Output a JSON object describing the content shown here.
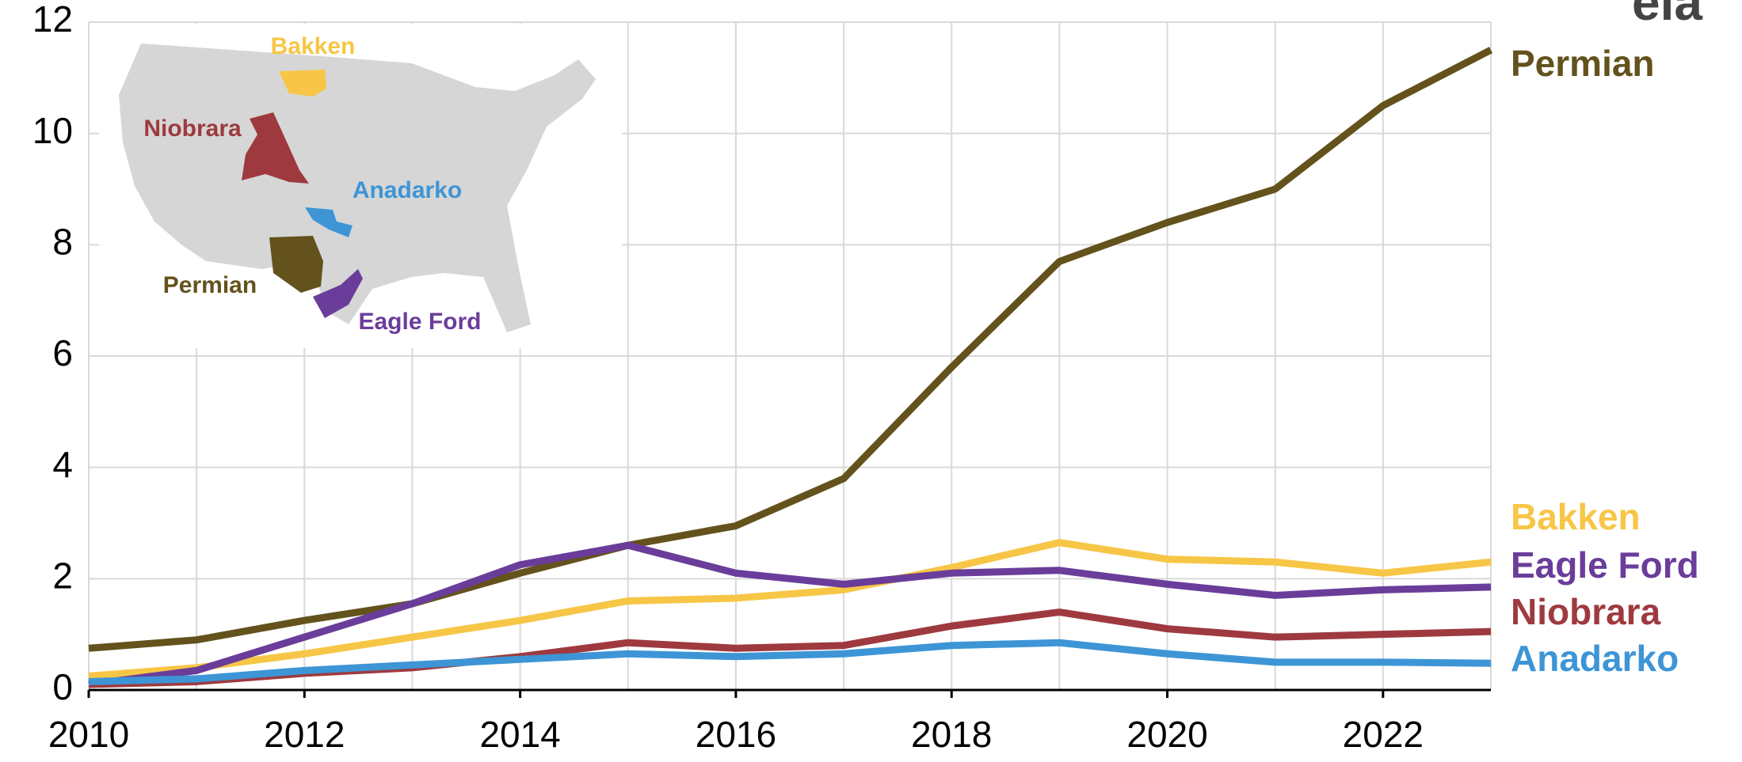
{
  "chart_data": {
    "type": "line",
    "x": [
      2010,
      2011,
      2012,
      2013,
      2014,
      2015,
      2016,
      2017,
      2018,
      2019,
      2020,
      2021,
      2022,
      2023
    ],
    "series": [
      {
        "name": "Permian",
        "color": "#63521c",
        "values": [
          0.75,
          0.9,
          1.25,
          1.55,
          2.1,
          2.6,
          2.95,
          3.8,
          5.8,
          7.7,
          8.4,
          9.0,
          10.5,
          11.5
        ]
      },
      {
        "name": "Bakken",
        "color": "#f7c646",
        "values": [
          0.25,
          0.4,
          0.65,
          0.95,
          1.25,
          1.6,
          1.65,
          1.8,
          2.2,
          2.65,
          2.35,
          2.3,
          2.1,
          2.3
        ]
      },
      {
        "name": "Eagle Ford",
        "color": "#6a3d9a",
        "values": [
          0.1,
          0.35,
          0.95,
          1.55,
          2.25,
          2.6,
          2.1,
          1.9,
          2.1,
          2.15,
          1.9,
          1.7,
          1.8,
          1.85
        ]
      },
      {
        "name": "Niobrara",
        "color": "#9e3a3f",
        "values": [
          0.1,
          0.15,
          0.3,
          0.4,
          0.6,
          0.85,
          0.75,
          0.8,
          1.15,
          1.4,
          1.1,
          0.95,
          1.0,
          1.05
        ]
      },
      {
        "name": "Anadarko",
        "color": "#3d95d6",
        "values": [
          0.15,
          0.2,
          0.35,
          0.45,
          0.55,
          0.65,
          0.6,
          0.65,
          0.8,
          0.85,
          0.65,
          0.5,
          0.5,
          0.48
        ]
      }
    ],
    "xlim": [
      2010,
      2023
    ],
    "xticks": [
      2010,
      2012,
      2014,
      2016,
      2018,
      2020,
      2022
    ],
    "ylim": [
      0,
      12
    ],
    "yticks": [
      0,
      2,
      4,
      6,
      8,
      10,
      12
    ],
    "grid": true,
    "inset_map_labels": [
      "Bakken",
      "Niobrara",
      "Anadarko",
      "Permian",
      "Eagle Ford"
    ],
    "logo": "eia"
  }
}
